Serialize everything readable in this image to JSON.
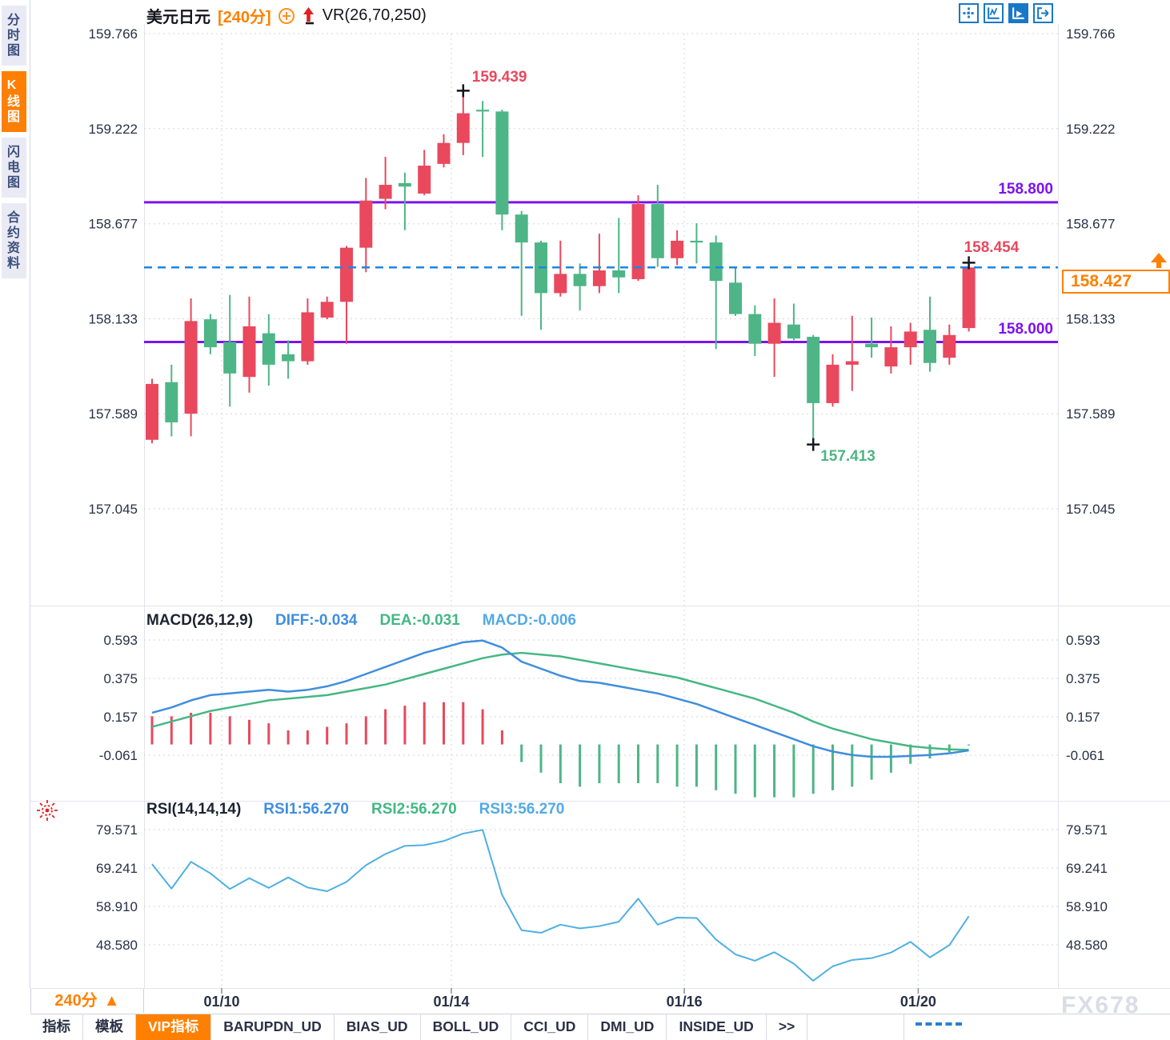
{
  "header": {
    "symbol": "美元日元",
    "period": "[240分]",
    "vr_label": "VR(26,70,250)"
  },
  "sidebar": {
    "tabs": [
      {
        "label": "分时图",
        "active": false
      },
      {
        "label": "K线图",
        "active": true
      },
      {
        "label": "闪电图",
        "active": false
      },
      {
        "label": "合约资料",
        "active": false
      }
    ]
  },
  "toolbar_icons": [
    "move-crosshair-icon",
    "axis-scale-icon",
    "axis-play-icon",
    "exit-right-icon"
  ],
  "overlays": {
    "high_label": "159.439",
    "low_label": "157.413",
    "last_high_label": "158.454",
    "resistance_label": "158.800",
    "support_label": "158.000",
    "current_price": "158.427"
  },
  "macd": {
    "title": "MACD(26,12,9)",
    "diff_label": "DIFF:-0.034",
    "dea_label": "DEA:-0.031",
    "macd_label": "MACD:-0.006"
  },
  "rsi": {
    "title": "RSI(14,14,14)",
    "rsi1_label": "RSI1:56.270",
    "rsi2_label": "RSI2:56.270",
    "rsi3_label": "RSI3:56.270",
    "marker_icon": "sun-icon"
  },
  "timeframe": {
    "label": "240分",
    "arrow": "▲"
  },
  "bottom_tabs": {
    "items": [
      {
        "label": "指标",
        "active": false
      },
      {
        "label": "模板",
        "active": false
      },
      {
        "label": "VIP指标",
        "active": true
      },
      {
        "label": "BARUPDN_UD",
        "active": false
      },
      {
        "label": "BIAS_UD",
        "active": false
      },
      {
        "label": "BOLL_UD",
        "active": false
      },
      {
        "label": "CCI_UD",
        "active": false
      },
      {
        "label": "DMI_UD",
        "active": false
      },
      {
        "label": "INSIDE_UD",
        "active": false
      },
      {
        "label": ">>",
        "active": false
      }
    ]
  },
  "watermark": "FX678",
  "colors": {
    "up": "#e9485d",
    "down": "#4eb586",
    "level_line": "#7b12f0",
    "current_line": "#1f86e0",
    "diff_line": "#3f8ede",
    "dea_line": "#46b783",
    "rsi_line": "#4fb0e2",
    "grid": "#d6d6e0",
    "axis_text": "#273045",
    "accent_orange": "#ff8000"
  },
  "chart_data": {
    "type": "candlestick",
    "title": "美元日元 240分 K线图 VR(26,70,250)",
    "price_ticks": [
      159.766,
      159.222,
      158.677,
      158.133,
      157.589,
      157.045
    ],
    "x_dates": [
      {
        "label": "01/10",
        "i": 3.58
      },
      {
        "label": "01/14",
        "i": 15.39
      },
      {
        "label": "01/16",
        "i": 27.37
      },
      {
        "label": "01/20",
        "i": 39.4
      }
    ],
    "candle_format": "[open, high, low, close]",
    "candles": [
      [
        157.44,
        157.79,
        157.42,
        157.76
      ],
      [
        157.77,
        157.87,
        157.46,
        157.54
      ],
      [
        157.59,
        158.25,
        157.46,
        158.12
      ],
      [
        158.13,
        158.16,
        157.93,
        157.97
      ],
      [
        158.0,
        158.27,
        157.63,
        157.82
      ],
      [
        157.8,
        158.26,
        157.71,
        158.09
      ],
      [
        158.05,
        158.16,
        157.75,
        157.87
      ],
      [
        157.93,
        158.01,
        157.79,
        157.89
      ],
      [
        157.89,
        158.25,
        157.87,
        158.17
      ],
      [
        158.14,
        158.26,
        158.13,
        158.23
      ],
      [
        158.23,
        158.55,
        157.99,
        158.54
      ],
      [
        158.54,
        158.94,
        158.4,
        158.81
      ],
      [
        158.82,
        159.06,
        158.76,
        158.9
      ],
      [
        158.91,
        158.97,
        158.64,
        158.89
      ],
      [
        158.85,
        159.1,
        158.84,
        159.01
      ],
      [
        159.02,
        159.19,
        159.0,
        159.14
      ],
      [
        159.14,
        159.439,
        159.07,
        159.31
      ],
      [
        159.33,
        159.38,
        159.06,
        159.32
      ],
      [
        159.32,
        159.33,
        158.64,
        158.73
      ],
      [
        158.73,
        158.75,
        158.15,
        158.57
      ],
      [
        158.57,
        158.58,
        158.07,
        158.28
      ],
      [
        158.28,
        158.58,
        158.26,
        158.39
      ],
      [
        158.39,
        158.45,
        158.18,
        158.32
      ],
      [
        158.32,
        158.62,
        158.28,
        158.41
      ],
      [
        158.41,
        158.71,
        158.28,
        158.37
      ],
      [
        158.36,
        158.84,
        158.35,
        158.79
      ],
      [
        158.79,
        158.9,
        158.43,
        158.48
      ],
      [
        158.48,
        158.64,
        158.44,
        158.58
      ],
      [
        158.58,
        158.68,
        158.45,
        158.57
      ],
      [
        158.57,
        158.61,
        157.96,
        158.35
      ],
      [
        158.34,
        158.43,
        158.15,
        158.16
      ],
      [
        158.16,
        158.21,
        157.92,
        157.99
      ],
      [
        157.99,
        158.25,
        157.8,
        158.11
      ],
      [
        158.1,
        158.22,
        158.01,
        158.02
      ],
      [
        158.03,
        158.04,
        157.413,
        157.65
      ],
      [
        157.65,
        157.93,
        157.63,
        157.87
      ],
      [
        157.87,
        158.15,
        157.72,
        157.89
      ],
      [
        157.99,
        158.14,
        157.91,
        157.97
      ],
      [
        157.86,
        158.09,
        157.82,
        157.97
      ],
      [
        157.97,
        158.11,
        157.87,
        158.06
      ],
      [
        158.07,
        158.26,
        157.83,
        157.88
      ],
      [
        157.91,
        158.1,
        157.87,
        158.04
      ],
      [
        158.08,
        158.454,
        158.06,
        158.427
      ]
    ],
    "levels": {
      "resistance": 158.8,
      "support": 158.0,
      "last": 158.427
    },
    "annotations": {
      "high": {
        "index": 16,
        "price": 159.439
      },
      "low": {
        "index": 34,
        "price": 157.413
      },
      "last_high": {
        "index": 42,
        "price": 158.454
      }
    },
    "macd": {
      "params": [
        26,
        12,
        9
      ],
      "ticks": [
        0.593,
        0.375,
        0.157,
        -0.061
      ],
      "last": {
        "diff": -0.034,
        "dea": -0.031,
        "macd": -0.006
      },
      "diff": [
        0.18,
        0.21,
        0.25,
        0.28,
        0.29,
        0.3,
        0.31,
        0.3,
        0.31,
        0.33,
        0.36,
        0.4,
        0.44,
        0.48,
        0.52,
        0.55,
        0.58,
        0.59,
        0.55,
        0.47,
        0.43,
        0.39,
        0.36,
        0.35,
        0.33,
        0.31,
        0.29,
        0.26,
        0.23,
        0.19,
        0.15,
        0.11,
        0.07,
        0.03,
        -0.01,
        -0.04,
        -0.06,
        -0.07,
        -0.07,
        -0.065,
        -0.06,
        -0.05,
        -0.034
      ],
      "dea": [
        0.1,
        0.13,
        0.16,
        0.19,
        0.21,
        0.23,
        0.25,
        0.26,
        0.27,
        0.28,
        0.3,
        0.32,
        0.34,
        0.37,
        0.4,
        0.43,
        0.46,
        0.49,
        0.51,
        0.52,
        0.51,
        0.5,
        0.48,
        0.46,
        0.44,
        0.42,
        0.4,
        0.38,
        0.35,
        0.32,
        0.29,
        0.26,
        0.22,
        0.18,
        0.13,
        0.09,
        0.06,
        0.03,
        0.01,
        -0.01,
        -0.02,
        -0.028,
        -0.031
      ]
    },
    "rsi": {
      "params": [
        14,
        14,
        14
      ],
      "ticks": [
        79.571,
        69.241,
        58.91,
        48.58
      ],
      "last": 56.27,
      "values": [
        70.3,
        63.7,
        70.9,
        67.8,
        63.6,
        66.5,
        63.9,
        66.7,
        64.0,
        63.0,
        65.5,
        70.0,
        73.0,
        75.2,
        75.4,
        76.5,
        78.5,
        79.5,
        62.0,
        52.5,
        51.8,
        54.0,
        53.0,
        53.6,
        54.8,
        61.0,
        54.0,
        55.9,
        55.8,
        50.0,
        46.0,
        44.3,
        46.6,
        43.5,
        38.9,
        42.8,
        44.5,
        45.0,
        46.5,
        49.4,
        45.2,
        48.5,
        56.27
      ]
    }
  }
}
